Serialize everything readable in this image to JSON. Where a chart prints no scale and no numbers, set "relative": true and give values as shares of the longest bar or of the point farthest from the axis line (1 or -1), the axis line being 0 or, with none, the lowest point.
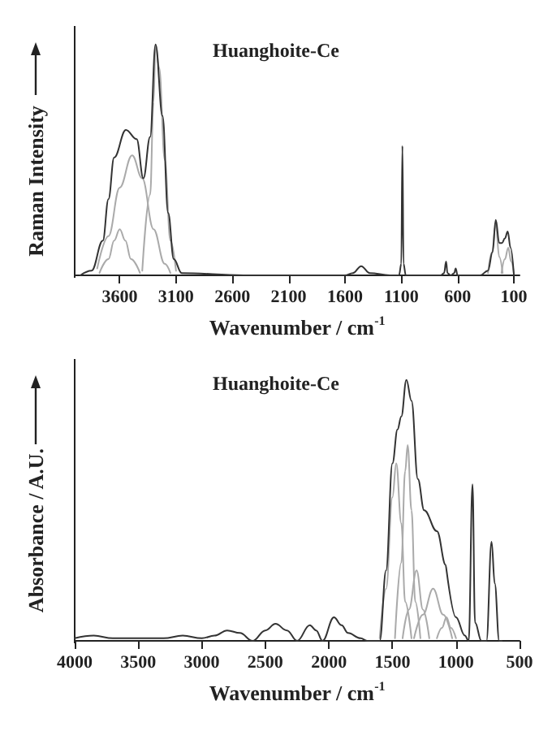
{
  "chart_data": [
    {
      "type": "line",
      "title": "Huanghoite-Ce",
      "xlabel": "Wavenumber / cm$^{-1}$",
      "ylabel": "Raman Intensity",
      "relative": true,
      "xlim": [
        4000,
        50
      ],
      "xticks": [
        3600,
        3100,
        2600,
        2100,
        1600,
        1100,
        600,
        100
      ],
      "grid": false,
      "marker": "none",
      "line_style": "solid",
      "series": [
        {
          "color": "#333333",
          "x": [
            3950,
            3850,
            3750,
            3700,
            3650,
            3545,
            3450,
            3390,
            3330,
            3282,
            3220,
            3170,
            3120,
            3050,
            2500,
            2000,
            1600,
            1530,
            1456,
            1380,
            1200,
            1120,
            1100,
            1090,
            1080,
            1060,
            900,
            750,
            720,
            702,
            690,
            660,
            630,
            617,
            600,
            500,
            400,
            330,
            290,
            261,
            230,
            206,
            180,
            155,
            130,
            100
          ],
          "values": [
            0,
            0.02,
            0.15,
            0.33,
            0.51,
            0.63,
            0.59,
            0.42,
            0.6,
            1,
            0.69,
            0.27,
            0.07,
            0.01,
            0,
            0,
            0,
            0.01,
            0.04,
            0.01,
            0,
            0,
            0.05,
            0.56,
            0.05,
            0,
            0,
            0,
            0.01,
            0.06,
            0.01,
            0,
            0.01,
            0.03,
            0,
            0,
            0,
            0.02,
            0.1,
            0.24,
            0.14,
            0.14,
            0.16,
            0.19,
            0.12,
            0
          ]
        },
        {
          "color": "#aaaaaa",
          "x": [
            3780,
            3700,
            3650,
            3600,
            3550,
            3500,
            3420
          ],
          "values": [
            0.01,
            0.07,
            0.15,
            0.2,
            0.15,
            0.07,
            0.01
          ]
        },
        {
          "color": "#aaaaaa",
          "x": [
            3800,
            3700,
            3600,
            3490,
            3400,
            3300,
            3200,
            3150
          ],
          "values": [
            0.03,
            0.17,
            0.38,
            0.52,
            0.42,
            0.2,
            0.05,
            0.01
          ]
        },
        {
          "color": "#aaaaaa",
          "x": [
            3400,
            3330,
            3300,
            3282,
            3250,
            3200,
            3150,
            3100
          ],
          "values": [
            0.02,
            0.35,
            0.75,
            1,
            0.9,
            0.5,
            0.15,
            0.02
          ]
        },
        {
          "color": "#aaaaaa",
          "x": [
            330,
            295,
            261,
            230,
            200
          ],
          "values": [
            0.01,
            0.1,
            0.22,
            0.08,
            0.01
          ]
        },
        {
          "color": "#aaaaaa",
          "x": [
            210,
            180,
            150,
            125,
            100
          ],
          "values": [
            0.01,
            0.07,
            0.12,
            0.06,
            0.01
          ]
        }
      ]
    },
    {
      "type": "line",
      "title": "Huanghoite-Ce",
      "xlabel": "Wavenumber / cm$^{-1}$",
      "ylabel": "Absorbance / A.U.",
      "relative": true,
      "xlim": [
        4000,
        500
      ],
      "xticks": [
        4000,
        3500,
        3000,
        2500,
        2000,
        1500,
        1000,
        500
      ],
      "grid": false,
      "marker": "none",
      "line_style": "solid",
      "series": [
        {
          "color": "#333333",
          "x": [
            4000,
            3850,
            3700,
            3500,
            3300,
            3150,
            3000,
            2900,
            2800,
            2700,
            2600,
            2500,
            2420,
            2330,
            2250,
            2150,
            2100,
            2050,
            1960,
            1900,
            1850,
            1750,
            1700,
            1600,
            1550,
            1500,
            1460,
            1430,
            1390,
            1350,
            1300,
            1250,
            1150,
            1080,
            1075,
            1000,
            930,
            900,
            870,
            850,
            800,
            760,
            720,
            695,
            660,
            640
          ],
          "values": [
            0.01,
            0.02,
            0.01,
            0.01,
            0.01,
            0.02,
            0.01,
            0.02,
            0.04,
            0.03,
            0,
            0.04,
            0.065,
            0.04,
            0,
            0.06,
            0.04,
            0,
            0.09,
            0.06,
            0.03,
            0.01,
            0,
            0,
            0.27,
            0.68,
            0.81,
            0.86,
            1,
            0.92,
            0.62,
            0.5,
            0.42,
            0.29,
            0.29,
            0.09,
            0.02,
            0,
            0.6,
            0.07,
            0,
            0,
            0.38,
            0.22,
            0,
            0
          ]
        },
        {
          "color": "#aaaaaa",
          "x": [
            1600,
            1550,
            1500,
            1470,
            1430,
            1400,
            1350
          ],
          "values": [
            0.01,
            0.2,
            0.55,
            0.68,
            0.45,
            0.15,
            0.01
          ]
        },
        {
          "color": "#aaaaaa",
          "x": [
            1480,
            1430,
            1400,
            1380,
            1350,
            1320,
            1280
          ],
          "values": [
            0.01,
            0.3,
            0.65,
            0.75,
            0.5,
            0.15,
            0.01
          ]
        },
        {
          "color": "#aaaaaa",
          "x": [
            1420,
            1370,
            1310,
            1260,
            1210
          ],
          "values": [
            0.01,
            0.12,
            0.27,
            0.12,
            0.01
          ]
        },
        {
          "color": "#aaaaaa",
          "x": [
            1330,
            1260,
            1180,
            1100,
            1030
          ],
          "values": [
            0.01,
            0.1,
            0.2,
            0.1,
            0.01
          ]
        },
        {
          "color": "#aaaaaa",
          "x": [
            1150,
            1110,
            1075,
            1040,
            1000
          ],
          "values": [
            0.01,
            0.05,
            0.09,
            0.05,
            0.01
          ]
        }
      ]
    }
  ]
}
